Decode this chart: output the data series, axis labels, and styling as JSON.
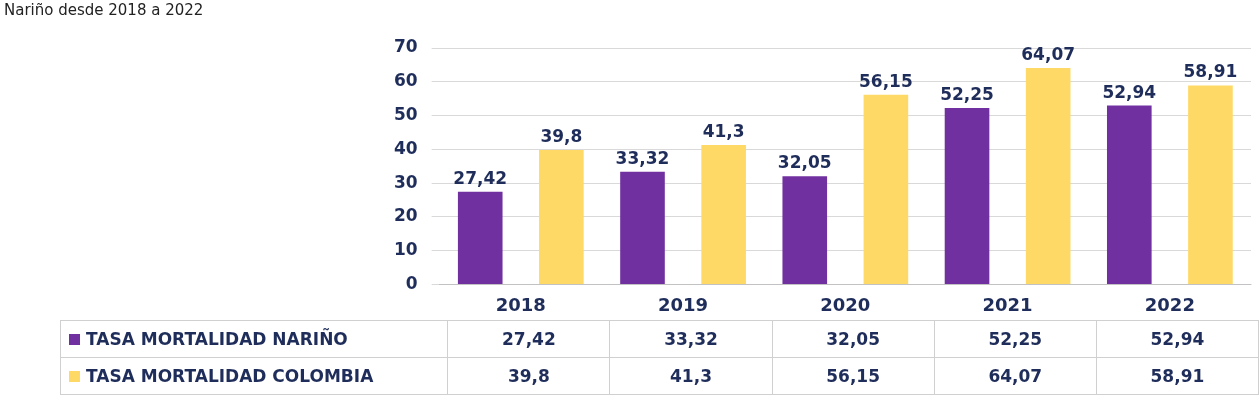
{
  "chart_data": {
    "type": "bar",
    "title": "Nariño desde 2018 a 2022",
    "categories": [
      "2018",
      "2019",
      "2020",
      "2021",
      "2022"
    ],
    "series": [
      {
        "name": "TASA MORTALIDAD NARIÑO",
        "color": "#7030a0",
        "values": [
          27.42,
          33.32,
          32.05,
          52.25,
          52.94
        ],
        "value_labels": [
          "27,42",
          "33,32",
          "32,05",
          "52,25",
          "52,94"
        ]
      },
      {
        "name": "TASA MORTALIDAD COLOMBIA",
        "color": "#ffd966",
        "values": [
          39.8,
          41.3,
          56.15,
          64.07,
          58.91
        ],
        "value_labels": [
          "39,8",
          "41,3",
          "56,15",
          "64,07",
          "58,91"
        ]
      }
    ],
    "ylim": [
      0,
      70
    ],
    "yticks": [
      0,
      10,
      20,
      30,
      40,
      50,
      60,
      70
    ],
    "grid": "y",
    "legend": "bottom"
  }
}
